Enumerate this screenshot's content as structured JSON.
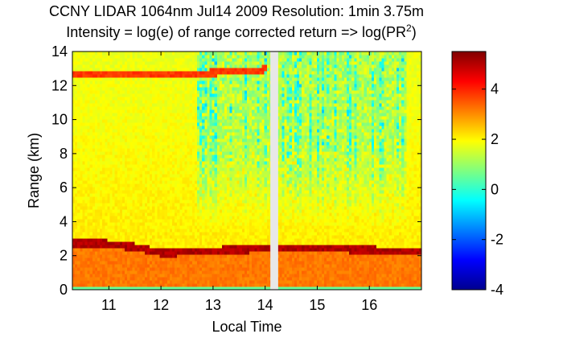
{
  "chart_data": {
    "type": "heatmap",
    "title_line1": "CCNY LIDAR 1064nm Jul14 2009 Resolution: 1min 3.75m",
    "title_line2_prefix": "Intensity = log(e) of range corrected return => log(PR",
    "title_line2_sup": "2",
    "title_line2_suffix": ")",
    "xlabel": "Local Time",
    "ylabel": "Range (km)",
    "xlim": [
      10.3,
      17.0
    ],
    "ylim": [
      0,
      14
    ],
    "xticks": [
      11,
      12,
      13,
      14,
      15,
      16
    ],
    "xtick_labels": [
      "11",
      "12",
      "13",
      "14",
      "15",
      "16"
    ],
    "yticks": [
      0,
      2,
      4,
      6,
      8,
      10,
      12,
      14
    ],
    "ytick_labels": [
      "0",
      "2",
      "4",
      "6",
      "8",
      "10",
      "12",
      "14"
    ],
    "colorbar": {
      "colormap": "jet",
      "range": [
        -4,
        5.5
      ],
      "ticks": [
        -4,
        -2,
        0,
        2,
        4
      ],
      "tick_labels": [
        "-4",
        "-2",
        "0",
        "2",
        "4"
      ]
    },
    "features": {
      "boundary_layer_top_km": [
        2.8,
        2.8,
        2.5,
        2.2,
        2.3,
        2.4,
        2.5,
        2.5,
        2.4,
        2.3,
        2.3
      ],
      "boundary_layer_times": [
        10.3,
        10.8,
        11.6,
        12.0,
        12.8,
        13.5,
        14.2,
        15.0,
        15.8,
        16.5,
        17.0
      ],
      "cirrus_layer_km": [
        12.6,
        12.6,
        12.7,
        12.8,
        12.9,
        13.0
      ],
      "cirrus_times": [
        10.3,
        11.5,
        12.5,
        13.2,
        13.8,
        14.05
      ],
      "data_gap_time": [
        14.1,
        14.25
      ],
      "noisy_period": [
        12.7,
        16.7
      ]
    }
  }
}
